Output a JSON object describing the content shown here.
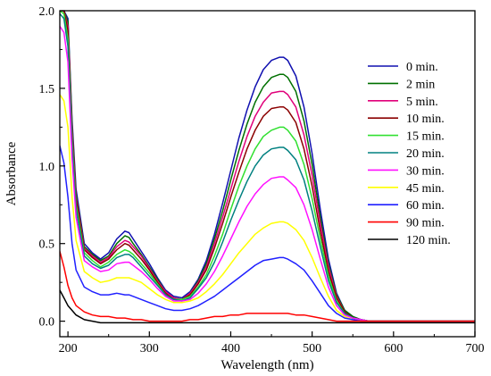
{
  "chart_data": {
    "type": "line",
    "title": "",
    "xlabel": "Wavelength (nm)",
    "ylabel": "Absorbance",
    "xlim": [
      190,
      700
    ],
    "ylim": [
      -0.1,
      2.0
    ],
    "xticks": [
      200,
      300,
      400,
      500,
      600,
      700
    ],
    "yticks": [
      0.0,
      0.5,
      1.0,
      1.5,
      2.0
    ],
    "xtick_labels": [
      "200",
      "300",
      "400",
      "500",
      "600",
      "700"
    ],
    "ytick_labels": [
      "0.0",
      "0.5",
      "1.0",
      "1.5",
      "2.0"
    ],
    "grid": false,
    "legend_position": "top-right",
    "series": [
      {
        "name": "0 min.",
        "color": "#1010b0",
        "x": [
          190,
          195,
          200,
          205,
          210,
          220,
          230,
          240,
          250,
          260,
          270,
          275,
          280,
          290,
          300,
          310,
          320,
          330,
          340,
          350,
          360,
          370,
          380,
          390,
          400,
          410,
          420,
          430,
          440,
          450,
          460,
          465,
          470,
          480,
          490,
          500,
          510,
          520,
          530,
          540,
          550,
          560,
          570,
          580,
          600,
          650,
          700
        ],
        "y": [
          2.0,
          2.0,
          1.95,
          1.3,
          0.85,
          0.5,
          0.44,
          0.4,
          0.44,
          0.53,
          0.58,
          0.57,
          0.53,
          0.45,
          0.37,
          0.28,
          0.2,
          0.16,
          0.15,
          0.19,
          0.27,
          0.39,
          0.56,
          0.76,
          0.97,
          1.18,
          1.36,
          1.51,
          1.62,
          1.68,
          1.7,
          1.7,
          1.68,
          1.58,
          1.38,
          1.08,
          0.72,
          0.4,
          0.18,
          0.07,
          0.03,
          0.01,
          0.0,
          0.0,
          0.0,
          0.0,
          0.0
        ]
      },
      {
        "name": "2 min",
        "color": "#007000",
        "x": [
          190,
          195,
          200,
          205,
          210,
          220,
          230,
          240,
          250,
          260,
          270,
          275,
          280,
          290,
          300,
          310,
          320,
          330,
          340,
          350,
          360,
          370,
          380,
          390,
          400,
          410,
          420,
          430,
          440,
          450,
          460,
          465,
          470,
          480,
          490,
          500,
          510,
          520,
          530,
          540,
          550,
          560,
          570,
          580,
          600,
          650,
          700
        ],
        "y": [
          2.0,
          2.0,
          1.93,
          1.27,
          0.82,
          0.48,
          0.43,
          0.39,
          0.42,
          0.5,
          0.55,
          0.54,
          0.5,
          0.43,
          0.35,
          0.27,
          0.19,
          0.15,
          0.14,
          0.18,
          0.26,
          0.37,
          0.53,
          0.71,
          0.91,
          1.1,
          1.27,
          1.41,
          1.51,
          1.57,
          1.59,
          1.59,
          1.57,
          1.48,
          1.29,
          1.01,
          0.67,
          0.37,
          0.17,
          0.07,
          0.03,
          0.01,
          0.0,
          0.0,
          0.0,
          0.0,
          0.0
        ]
      },
      {
        "name": "5 min.",
        "color": "#e0007a",
        "x": [
          190,
          195,
          200,
          205,
          210,
          220,
          230,
          240,
          250,
          260,
          270,
          275,
          280,
          290,
          300,
          310,
          320,
          330,
          340,
          350,
          360,
          370,
          380,
          390,
          400,
          410,
          420,
          430,
          440,
          450,
          460,
          465,
          470,
          480,
          490,
          500,
          510,
          520,
          530,
          540,
          550,
          560,
          570,
          580,
          600,
          650,
          700
        ],
        "y": [
          2.0,
          2.0,
          1.9,
          1.24,
          0.8,
          0.47,
          0.42,
          0.38,
          0.41,
          0.48,
          0.52,
          0.51,
          0.48,
          0.42,
          0.34,
          0.26,
          0.19,
          0.15,
          0.14,
          0.18,
          0.25,
          0.35,
          0.5,
          0.67,
          0.85,
          1.03,
          1.19,
          1.32,
          1.41,
          1.47,
          1.48,
          1.48,
          1.46,
          1.38,
          1.2,
          0.94,
          0.63,
          0.35,
          0.16,
          0.06,
          0.02,
          0.01,
          0.0,
          0.0,
          0.0,
          0.0,
          0.0
        ]
      },
      {
        "name": "10 min.",
        "color": "#8b0000",
        "x": [
          190,
          195,
          200,
          205,
          210,
          220,
          230,
          240,
          250,
          260,
          270,
          275,
          280,
          290,
          300,
          310,
          320,
          330,
          340,
          350,
          360,
          370,
          380,
          390,
          400,
          410,
          420,
          430,
          440,
          450,
          460,
          465,
          470,
          480,
          490,
          500,
          510,
          520,
          530,
          540,
          550,
          560,
          570,
          580,
          600,
          650,
          700
        ],
        "y": [
          2.0,
          2.0,
          1.87,
          1.21,
          0.78,
          0.46,
          0.41,
          0.37,
          0.4,
          0.46,
          0.5,
          0.49,
          0.46,
          0.4,
          0.33,
          0.25,
          0.18,
          0.14,
          0.14,
          0.17,
          0.24,
          0.33,
          0.47,
          0.63,
          0.8,
          0.96,
          1.11,
          1.23,
          1.32,
          1.37,
          1.38,
          1.38,
          1.36,
          1.28,
          1.11,
          0.87,
          0.58,
          0.32,
          0.15,
          0.06,
          0.02,
          0.01,
          0.0,
          0.0,
          0.0,
          0.0,
          0.0
        ]
      },
      {
        "name": "15 min.",
        "color": "#30e030",
        "x": [
          190,
          195,
          200,
          205,
          210,
          220,
          230,
          240,
          250,
          260,
          270,
          275,
          280,
          290,
          300,
          310,
          320,
          330,
          340,
          350,
          360,
          370,
          380,
          390,
          400,
          410,
          420,
          430,
          440,
          450,
          460,
          465,
          470,
          480,
          490,
          500,
          510,
          520,
          530,
          540,
          550,
          560,
          570,
          580,
          600,
          650,
          700
        ],
        "y": [
          2.0,
          1.98,
          1.82,
          1.17,
          0.75,
          0.44,
          0.39,
          0.35,
          0.38,
          0.43,
          0.46,
          0.45,
          0.43,
          0.37,
          0.31,
          0.24,
          0.17,
          0.14,
          0.14,
          0.16,
          0.22,
          0.3,
          0.42,
          0.56,
          0.72,
          0.87,
          1.0,
          1.11,
          1.19,
          1.23,
          1.25,
          1.25,
          1.23,
          1.16,
          1.01,
          0.79,
          0.53,
          0.29,
          0.13,
          0.05,
          0.02,
          0.01,
          0.0,
          0.0,
          0.0,
          0.0,
          0.0
        ]
      },
      {
        "name": "20 min.",
        "color": "#008080",
        "x": [
          190,
          195,
          200,
          205,
          210,
          220,
          230,
          240,
          250,
          260,
          270,
          275,
          280,
          290,
          300,
          310,
          320,
          330,
          340,
          350,
          360,
          370,
          380,
          390,
          400,
          410,
          420,
          430,
          440,
          450,
          460,
          465,
          470,
          480,
          490,
          500,
          510,
          520,
          530,
          540,
          550,
          560,
          570,
          580,
          600,
          650,
          700
        ],
        "y": [
          1.98,
          1.95,
          1.77,
          1.13,
          0.72,
          0.42,
          0.37,
          0.34,
          0.36,
          0.41,
          0.43,
          0.43,
          0.41,
          0.35,
          0.29,
          0.23,
          0.17,
          0.14,
          0.13,
          0.15,
          0.21,
          0.28,
          0.38,
          0.51,
          0.65,
          0.78,
          0.9,
          1.0,
          1.07,
          1.11,
          1.12,
          1.12,
          1.1,
          1.04,
          0.91,
          0.71,
          0.48,
          0.26,
          0.12,
          0.05,
          0.02,
          0.01,
          0.0,
          0.0,
          0.0,
          0.0,
          0.0
        ]
      },
      {
        "name": "30 min.",
        "color": "#ff10ff",
        "x": [
          190,
          195,
          200,
          205,
          210,
          220,
          230,
          240,
          250,
          260,
          270,
          275,
          280,
          290,
          300,
          310,
          320,
          330,
          340,
          350,
          360,
          370,
          380,
          390,
          400,
          410,
          420,
          430,
          440,
          450,
          460,
          465,
          470,
          480,
          490,
          500,
          510,
          520,
          530,
          540,
          550,
          560,
          570,
          580,
          600,
          650,
          700
        ],
        "y": [
          1.9,
          1.86,
          1.67,
          1.05,
          0.67,
          0.39,
          0.35,
          0.32,
          0.33,
          0.37,
          0.38,
          0.38,
          0.36,
          0.32,
          0.27,
          0.21,
          0.16,
          0.13,
          0.13,
          0.14,
          0.18,
          0.24,
          0.32,
          0.42,
          0.53,
          0.64,
          0.74,
          0.82,
          0.88,
          0.92,
          0.93,
          0.93,
          0.91,
          0.86,
          0.75,
          0.59,
          0.4,
          0.22,
          0.1,
          0.04,
          0.02,
          0.01,
          0.0,
          0.0,
          0.0,
          0.0,
          0.0
        ]
      },
      {
        "name": "45 min.",
        "color": "#ffff00",
        "x": [
          190,
          195,
          200,
          205,
          210,
          220,
          230,
          240,
          250,
          260,
          270,
          275,
          280,
          290,
          300,
          310,
          320,
          330,
          340,
          350,
          360,
          370,
          380,
          390,
          400,
          410,
          420,
          430,
          440,
          450,
          460,
          465,
          470,
          480,
          490,
          500,
          510,
          520,
          530,
          540,
          550,
          560,
          570,
          580,
          600,
          650,
          700
        ],
        "y": [
          1.46,
          1.42,
          1.25,
          0.8,
          0.52,
          0.32,
          0.28,
          0.25,
          0.26,
          0.28,
          0.28,
          0.28,
          0.27,
          0.25,
          0.21,
          0.17,
          0.14,
          0.12,
          0.12,
          0.13,
          0.15,
          0.19,
          0.24,
          0.3,
          0.37,
          0.44,
          0.5,
          0.56,
          0.6,
          0.63,
          0.64,
          0.64,
          0.63,
          0.59,
          0.52,
          0.41,
          0.28,
          0.16,
          0.07,
          0.03,
          0.01,
          0.0,
          0.0,
          0.0,
          0.0,
          0.0,
          0.0
        ]
      },
      {
        "name": "60 min.",
        "color": "#2020ff",
        "x": [
          190,
          195,
          200,
          205,
          210,
          220,
          230,
          240,
          250,
          260,
          270,
          275,
          280,
          290,
          300,
          310,
          320,
          330,
          340,
          350,
          360,
          370,
          380,
          390,
          400,
          410,
          420,
          430,
          440,
          450,
          460,
          465,
          470,
          480,
          490,
          500,
          510,
          520,
          530,
          540,
          550,
          560,
          570,
          580,
          600,
          650,
          700
        ],
        "y": [
          1.13,
          1.02,
          0.8,
          0.5,
          0.33,
          0.22,
          0.19,
          0.17,
          0.17,
          0.18,
          0.17,
          0.17,
          0.16,
          0.14,
          0.12,
          0.1,
          0.08,
          0.07,
          0.07,
          0.08,
          0.1,
          0.13,
          0.16,
          0.2,
          0.24,
          0.28,
          0.32,
          0.36,
          0.39,
          0.4,
          0.41,
          0.41,
          0.4,
          0.37,
          0.33,
          0.26,
          0.18,
          0.1,
          0.05,
          0.02,
          0.01,
          0.0,
          0.0,
          0.0,
          0.0,
          0.0,
          0.0
        ]
      },
      {
        "name": "90 min.",
        "color": "#ff0000",
        "x": [
          190,
          195,
          200,
          205,
          210,
          220,
          230,
          240,
          250,
          260,
          270,
          280,
          290,
          300,
          310,
          320,
          330,
          340,
          350,
          360,
          370,
          380,
          390,
          400,
          410,
          420,
          430,
          440,
          450,
          460,
          470,
          480,
          490,
          500,
          510,
          520,
          530,
          540,
          550,
          560,
          570,
          580,
          600,
          650,
          700
        ],
        "y": [
          0.45,
          0.35,
          0.23,
          0.15,
          0.1,
          0.06,
          0.04,
          0.03,
          0.03,
          0.02,
          0.02,
          0.01,
          0.01,
          0.0,
          0.0,
          0.0,
          0.0,
          0.0,
          0.01,
          0.01,
          0.02,
          0.03,
          0.03,
          0.04,
          0.04,
          0.05,
          0.05,
          0.05,
          0.05,
          0.05,
          0.05,
          0.04,
          0.04,
          0.03,
          0.02,
          0.01,
          0.0,
          0.0,
          0.0,
          0.0,
          0.0,
          0.0,
          0.0,
          0.0,
          0.0
        ]
      },
      {
        "name": "120 min.",
        "color": "#000000",
        "x": [
          190,
          195,
          200,
          205,
          210,
          220,
          230,
          240,
          250,
          300,
          350,
          400,
          450,
          500,
          550,
          600,
          650,
          700
        ],
        "y": [
          0.2,
          0.15,
          0.1,
          0.07,
          0.04,
          0.01,
          0.0,
          -0.01,
          -0.01,
          -0.01,
          -0.01,
          -0.01,
          -0.01,
          -0.01,
          -0.01,
          -0.01,
          -0.01,
          -0.01
        ]
      }
    ]
  }
}
